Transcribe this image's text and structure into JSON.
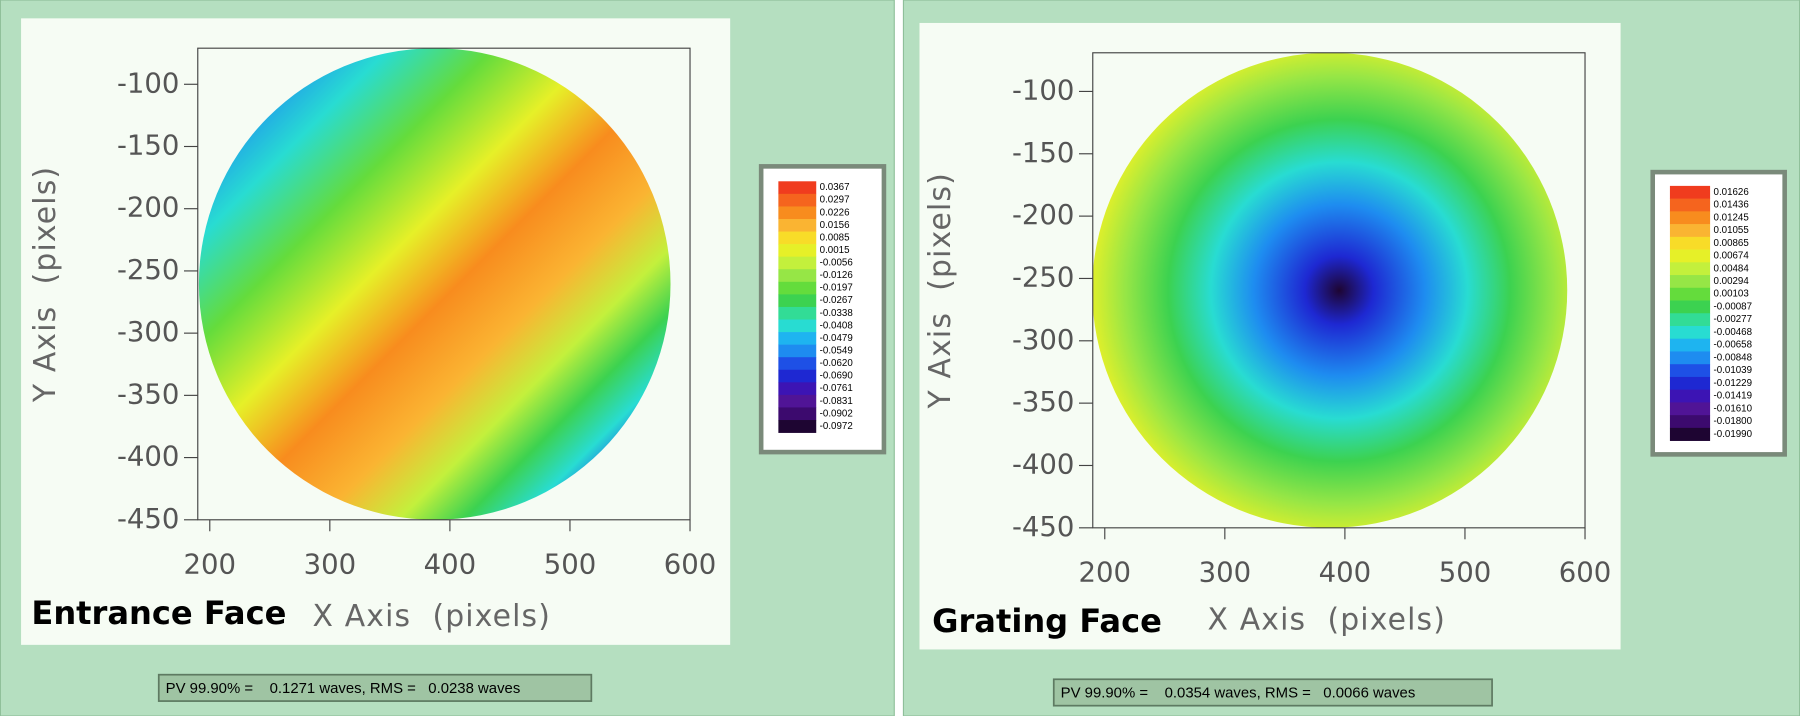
{
  "chart_data": [
    {
      "type": "heatmap",
      "title": "Entrance Face",
      "x_label": "X Axis  (pixels)",
      "y_label": "Y Axis  (pixels)",
      "xlim": [
        190,
        600
      ],
      "ylim": [
        -450,
        -71
      ],
      "xticks": [
        200,
        300,
        400,
        500,
        600
      ],
      "yticks": [
        -100,
        -150,
        -200,
        -250,
        -300,
        -350,
        -400,
        -450
      ],
      "colorbar": {
        "ticks": [
          0.0367,
          0.0297,
          0.0226,
          0.0156,
          0.0085,
          0.0015,
          -0.0056,
          -0.0126,
          -0.0197,
          -0.0267,
          -0.0338,
          -0.0408,
          -0.0479,
          -0.0549,
          {
            "value": -0.062,
            "label": "-0.0620"
          },
          {
            "value": -0.069,
            "label": "-0.0690"
          },
          -0.0761,
          -0.0831,
          -0.0902,
          -0.0972
        ],
        "colors": [
          "#f03c1e",
          "#f5641e",
          "#f88c1e",
          "#fab432",
          "#f8dc28",
          "#e6f028",
          "#c3f03c",
          "#96e646",
          "#64dc3c",
          "#3cd250",
          "#32dc96",
          "#28dcd2",
          "#1eb4f0",
          "#1e8cf0",
          "#1e50e6",
          "#1e28d2",
          "#3c14b4",
          "#501496",
          "#3c0a6e",
          "#1e0532"
        ]
      },
      "stats": "PV 99.90% =    0.1271 waves, RMS =   0.0238 waves"
    },
    {
      "type": "heatmap",
      "title": "Grating Face",
      "x_label": "X Axis  (pixels)",
      "y_label": "Y Axis  (pixels)",
      "xlim": [
        190,
        600
      ],
      "ylim": [
        -450,
        -69
      ],
      "xticks": [
        200,
        300,
        400,
        500,
        600
      ],
      "yticks": [
        -100,
        -150,
        -200,
        -250,
        -300,
        -350,
        -400,
        -450
      ],
      "colorbar": {
        "ticks": [
          0.01626,
          0.01436,
          0.01245,
          0.01055,
          0.00865,
          0.00674,
          0.00484,
          0.00294,
          0.00103,
          -0.00087,
          -0.00277,
          -0.00468,
          -0.00658,
          -0.00848,
          -0.01039,
          -0.01229,
          -0.01419,
          {
            "value": -0.0161,
            "label": "-0.01610"
          },
          {
            "value": -0.018,
            "label": "-0.01800"
          },
          {
            "value": -0.0199,
            "label": "-0.01990"
          }
        ],
        "colors": [
          "#f03c1e",
          "#f5641e",
          "#f88c1e",
          "#fab432",
          "#f8dc28",
          "#e6f028",
          "#c3f03c",
          "#96e646",
          "#64dc3c",
          "#3cd250",
          "#32dc96",
          "#28dcd2",
          "#1eb4f0",
          "#1e8cf0",
          "#1e50e6",
          "#1e28d2",
          "#3c14b4",
          "#501496",
          "#3c0a6e",
          "#1e0532"
        ]
      },
      "stats": "PV 99.90% =    0.0354 waves, RMS =   0.0066 waves"
    }
  ]
}
